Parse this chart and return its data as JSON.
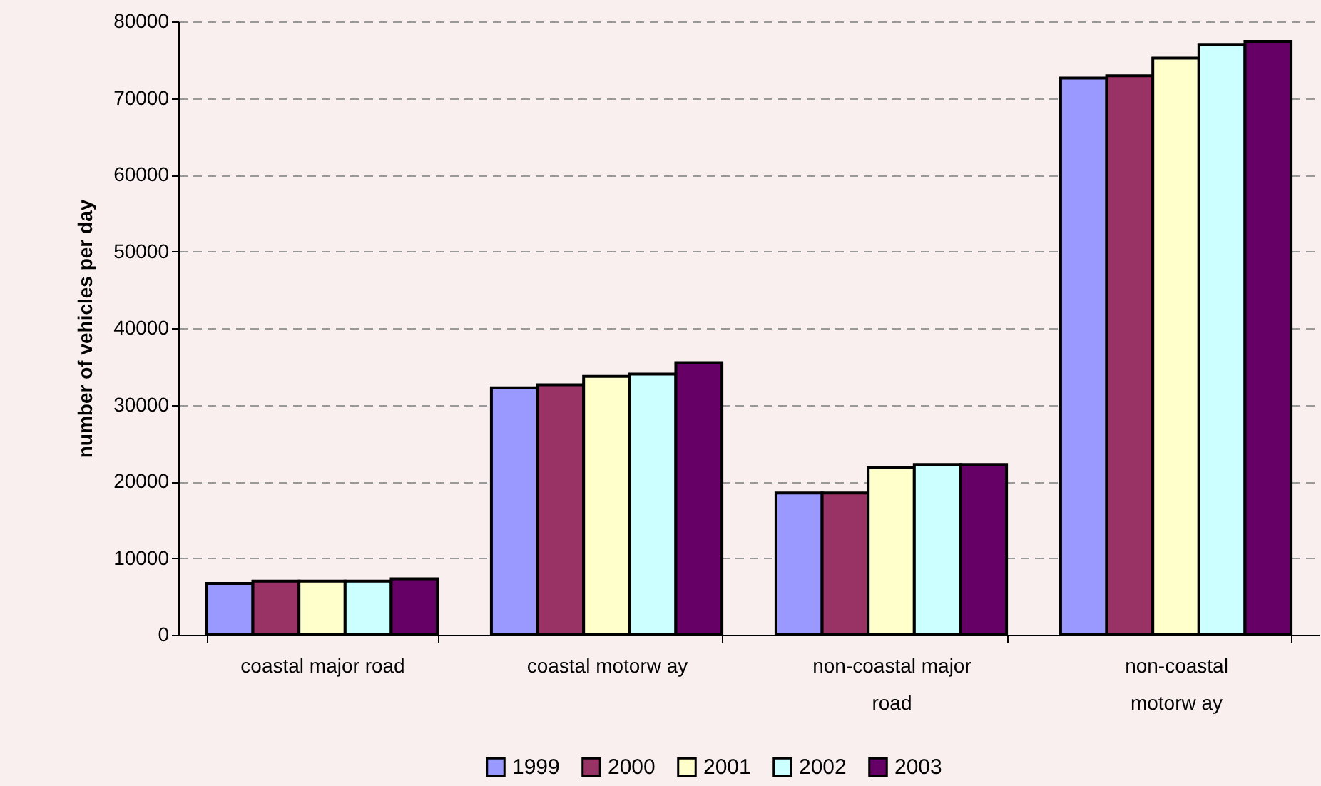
{
  "chart_data": {
    "type": "bar",
    "ylabel": "number of vehicles per day",
    "categories": [
      "coastal major road",
      "coastal motorw ay",
      "non-coastal major road",
      "non-coastal motorw ay"
    ],
    "series": [
      {
        "name": "1999",
        "color": "#9999ff",
        "values": [
          6700,
          32200,
          18500,
          72600
        ]
      },
      {
        "name": "2000",
        "color": "#993366",
        "values": [
          7000,
          32600,
          18500,
          72900
        ]
      },
      {
        "name": "2001",
        "color": "#ffffcc",
        "values": [
          7000,
          33700,
          21800,
          75200
        ]
      },
      {
        "name": "2002",
        "color": "#ccffff",
        "values": [
          7000,
          34000,
          22200,
          77000
        ]
      },
      {
        "name": "2003",
        "color": "#660066",
        "values": [
          7300,
          35500,
          22200,
          77400
        ]
      }
    ],
    "ylim": [
      0,
      80000
    ],
    "yticks": [
      0,
      10000,
      20000,
      30000,
      40000,
      50000,
      60000,
      70000,
      80000
    ],
    "grid": "y",
    "legend": "bottom"
  }
}
